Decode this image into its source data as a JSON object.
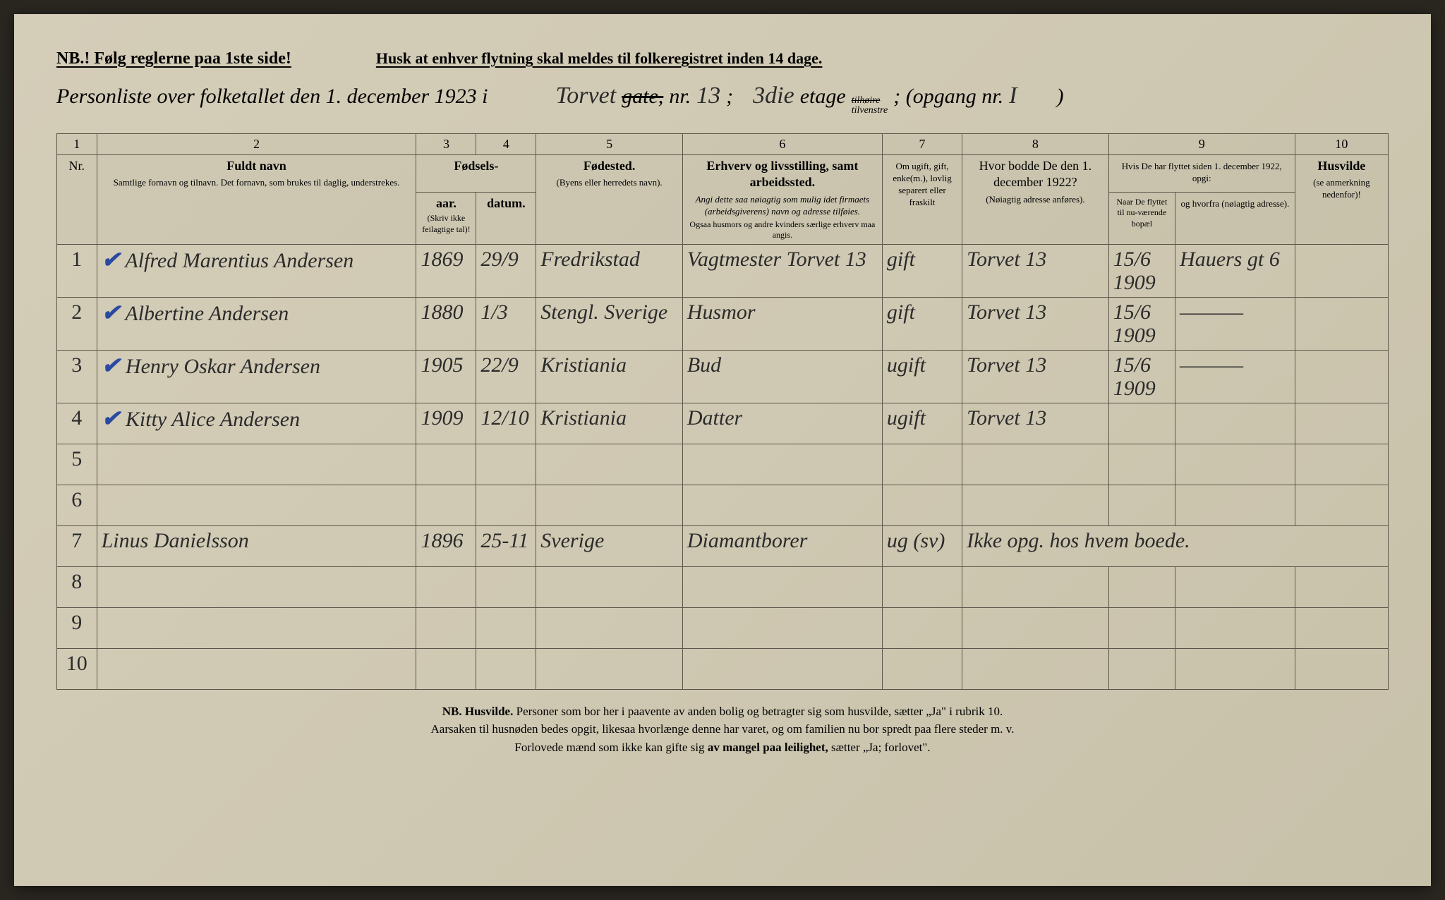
{
  "header": {
    "nb_rule": "NB.! Følg reglerne paa 1ste side!",
    "reminder": "Husk at enhver flytning skal meldes til folkeregistret inden 14 dage.",
    "subtitle_prefix": "Personliste over folketallet den 1. december 1923 i",
    "street_hand": "Torvet",
    "gate_strike": "gate,",
    "nr_label": "nr.",
    "nr_value": "13",
    "etage_hand": "3die",
    "etage_label": "etage",
    "tilhoire_strike": "tilhøire",
    "tilvenstre": "tilvenstre",
    "opgang_label": "; (opgang nr.",
    "opgang_value": "I",
    "close_paren": ")"
  },
  "columns": {
    "nums": [
      "1",
      "2",
      "3",
      "4",
      "5",
      "6",
      "7",
      "8",
      "9",
      "10"
    ],
    "nr": "Nr.",
    "name_head": "Fuldt navn",
    "name_sub": "Samtlige fornavn og tilnavn. Det fornavn, som brukes til daglig, understrekes.",
    "fodsels": "Fødsels-",
    "aar": "aar.",
    "datum": "datum.",
    "aar_sub": "(Skriv ikke feilagtige tal)!",
    "fodested": "Fødested.",
    "fodested_sub": "(Byens eller herredets navn).",
    "erhverv": "Erhverv og livsstilling, samt arbeidssted.",
    "erhverv_sub": "Angi dette saa nøiagtig som mulig idet firmaets (arbeidsgiverens) navn og adresse tilføies.",
    "erhverv_sub2": "Ogsaa husmors og andre kvinders særlige erhverv maa angis.",
    "ms": "Om ugift, gift, enke(m.), lovlig separert eller fraskilt",
    "prev": "Hvor bodde De den 1. december 1922?",
    "prev_sub": "(Nøiagtig adresse anføres).",
    "moved": "Hvis De har flyttet siden 1. december 1922, opgi:",
    "moved_when": "Naar De flyttet til nu-værende bopæl",
    "moved_from": "og hvorfra (nøiagtig adresse).",
    "husvilde": "Husvilde",
    "husvilde_sub": "(se anmerkning nedenfor)!"
  },
  "rows": [
    {
      "nr": "1",
      "check": true,
      "name": "Alfred Marentius Andersen",
      "year": "1869",
      "date": "29/9",
      "birthplace": "Fredrikstad",
      "occupation": "Vagtmester Torvet 13",
      "ms": "gift",
      "prev": "Torvet 13",
      "when": "15/6 1909",
      "from": "Hauers gt 6",
      "husv": ""
    },
    {
      "nr": "2",
      "check": true,
      "name": "Albertine Andersen",
      "year": "1880",
      "date": "1/3",
      "birthplace": "Stengl. Sverige",
      "occupation": "Husmor",
      "ms": "gift",
      "prev": "Torvet 13",
      "when": "15/6 1909",
      "from": "―――",
      "husv": ""
    },
    {
      "nr": "3",
      "check": true,
      "name": "Henry Oskar Andersen",
      "year": "1905",
      "date": "22/9",
      "birthplace": "Kristiania",
      "occupation": "Bud",
      "ms": "ugift",
      "prev": "Torvet 13",
      "when": "15/6 1909",
      "from": "―――",
      "husv": ""
    },
    {
      "nr": "4",
      "check": true,
      "name": "Kitty Alice Andersen",
      "year": "1909",
      "date": "12/10",
      "birthplace": "Kristiania",
      "occupation": "Datter",
      "ms": "ugift",
      "prev": "Torvet 13",
      "when": "",
      "from": "",
      "husv": ""
    },
    {
      "nr": "5",
      "name": "",
      "year": "",
      "date": "",
      "birthplace": "",
      "occupation": "",
      "ms": "",
      "prev": "",
      "when": "",
      "from": "",
      "husv": ""
    },
    {
      "nr": "6",
      "name": "",
      "year": "",
      "date": "",
      "birthplace": "",
      "occupation": "",
      "ms": "",
      "prev": "",
      "when": "",
      "from": "",
      "husv": ""
    },
    {
      "nr": "7",
      "red": true,
      "name": "Linus Danielsson",
      "year": "1896",
      "date": "25-11",
      "birthplace": "Sverige",
      "occupation": "Diamantborer",
      "ms": "ug (sv)",
      "prev": "Ikke opg. hos hvem boede.",
      "when": "",
      "from": "",
      "husv": ""
    },
    {
      "nr": "8",
      "name": "",
      "year": "",
      "date": "",
      "birthplace": "",
      "occupation": "",
      "ms": "",
      "prev": "",
      "when": "",
      "from": "",
      "husv": ""
    },
    {
      "nr": "9",
      "name": "",
      "year": "",
      "date": "",
      "birthplace": "",
      "occupation": "",
      "ms": "",
      "prev": "",
      "when": "",
      "from": "",
      "husv": ""
    },
    {
      "nr": "10",
      "name": "",
      "year": "",
      "date": "",
      "birthplace": "",
      "occupation": "",
      "ms": "",
      "prev": "",
      "when": "",
      "from": "",
      "husv": ""
    }
  ],
  "footer": {
    "line1a": "NB. Husvilde.",
    "line1b": " Personer som bor her i paavente av anden bolig og betragter sig som husvilde, sætter „Ja\" i rubrik 10.",
    "line2": "Aarsaken til husnøden bedes opgit, likesaa hvorlænge denne har varet, og om familien nu bor spredt paa flere steder m. v.",
    "line3a": "Forlovede mænd som ikke kan gifte sig ",
    "line3b": "av mangel paa leilighet,",
    "line3c": " sætter „Ja; forlovet\"."
  }
}
